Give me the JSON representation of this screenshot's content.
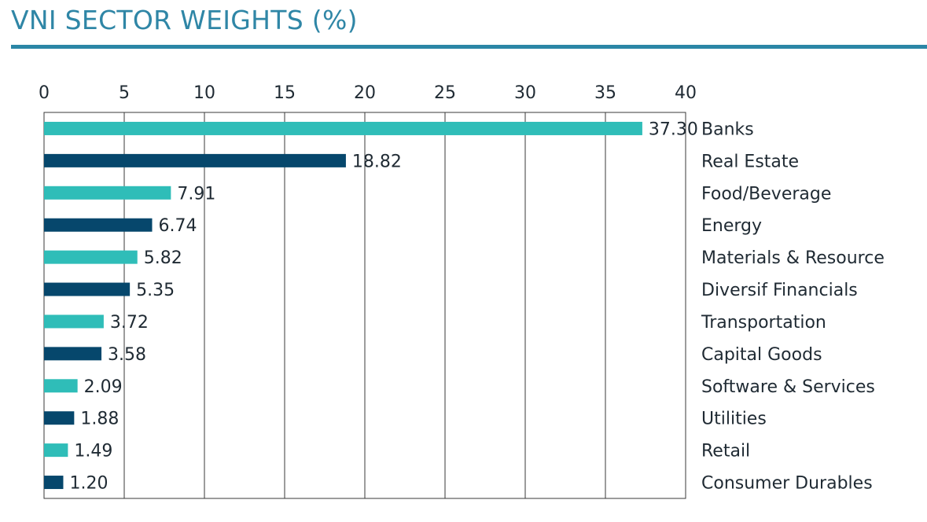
{
  "title": "VNI SECTOR WEIGHTS (%)",
  "colors": {
    "title": "#2f86a6",
    "rule": "#2b86a6",
    "series_light": "#2fbdb8",
    "series_dark": "#06476c",
    "text": "#1f2a33",
    "grid": "#3a3a3a"
  },
  "chart_data": {
    "type": "bar",
    "orientation": "horizontal",
    "title": "VNI SECTOR WEIGHTS (%)",
    "xlim": [
      0,
      40
    ],
    "x_ticks": [
      0,
      5,
      10,
      15,
      20,
      25,
      30,
      35,
      40
    ],
    "x_axis_position": "top",
    "grid": true,
    "categories": [
      "Banks",
      "Real Estate",
      "Food/Beverage",
      "Energy",
      "Materials & Resource",
      "Diversif Financials",
      "Transportation",
      "Capital Goods",
      "Software & Services",
      "Utilities",
      "Retail",
      "Consumer Durables"
    ],
    "values": [
      37.3,
      18.82,
      7.91,
      6.74,
      5.82,
      5.35,
      3.72,
      3.58,
      2.09,
      1.88,
      1.49,
      1.2
    ],
    "value_labels": [
      "37.30",
      "18.82",
      "7.91",
      "6.74",
      "5.82",
      "5.35",
      "3.72",
      "3.58",
      "2.09",
      "1.88",
      "1.49",
      "1.20"
    ],
    "bar_color_pattern": [
      "light",
      "dark"
    ],
    "category_label_position": "right"
  }
}
